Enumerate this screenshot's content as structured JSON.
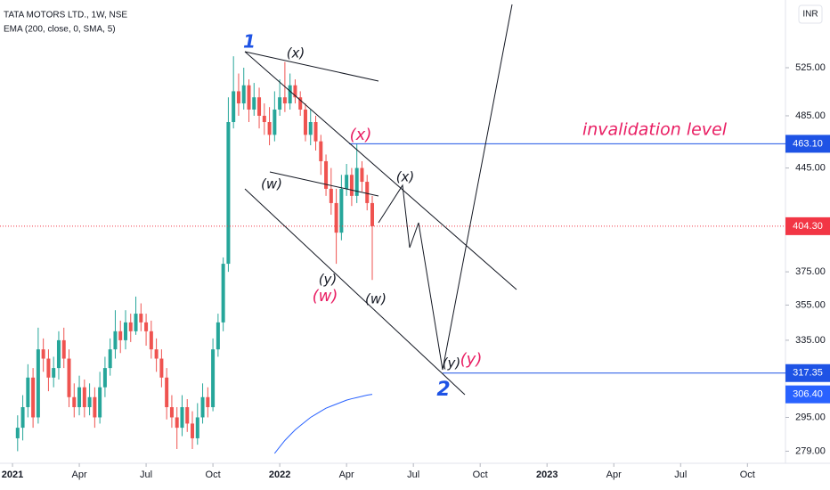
{
  "chart_data": {
    "type": "candlestick",
    "title": "TATA MOTORS LTD., 1W, NSE",
    "subtitle": "EMA (200, close, 0, SMA, 5)",
    "currency": "INR",
    "log_scale": true,
    "grid": false,
    "up_color": "#26a69a",
    "down_color": "#ef5350",
    "xlim": [
      -2.43,
      150.4
    ],
    "ylim": [
      273.5,
      587
    ],
    "xticks": [
      {
        "value": 0,
        "label": "2021"
      },
      {
        "value": 13,
        "label": "Apr"
      },
      {
        "value": 26,
        "label": "Jul"
      },
      {
        "value": 39,
        "label": "Oct"
      },
      {
        "value": 52,
        "label": "2022"
      },
      {
        "value": 65,
        "label": "Apr"
      },
      {
        "value": 78,
        "label": "Jul"
      },
      {
        "value": 91,
        "label": "Oct"
      },
      {
        "value": 104,
        "label": "2023"
      },
      {
        "value": 117,
        "label": "Apr"
      },
      {
        "value": 130,
        "label": "Jul"
      },
      {
        "value": 143,
        "label": "Oct"
      }
    ],
    "yticks": [
      {
        "value": 525,
        "label": "525.00"
      },
      {
        "value": 485,
        "label": "485.00"
      },
      {
        "value": 445,
        "label": "445.00"
      },
      {
        "value": 375,
        "label": "375.00"
      },
      {
        "value": 355,
        "label": "355.00"
      },
      {
        "value": 335,
        "label": "335.00"
      },
      {
        "value": 295,
        "label": "295.00"
      },
      {
        "value": 279,
        "label": "279.00"
      }
    ],
    "x": [
      1,
      2,
      3,
      4,
      5,
      6,
      7,
      8,
      9,
      10,
      11,
      12,
      13,
      14,
      15,
      16,
      17,
      18,
      19,
      20,
      21,
      22,
      23,
      24,
      25,
      26,
      27,
      28,
      29,
      30,
      31,
      32,
      33,
      34,
      35,
      36,
      37,
      38,
      39,
      40,
      41,
      42,
      43,
      44,
      45,
      46,
      47,
      48,
      49,
      50,
      51,
      52,
      53,
      54,
      55,
      56,
      57,
      58,
      59,
      60,
      61,
      62,
      63,
      64,
      65,
      66,
      67,
      68,
      69,
      70
    ],
    "open": [
      285,
      290,
      300,
      315,
      295,
      330,
      325,
      315,
      320,
      335,
      325,
      305,
      300,
      310,
      300,
      305,
      295,
      310,
      320,
      330,
      340,
      335,
      345,
      340,
      350,
      345,
      340,
      330,
      325,
      315,
      300,
      295,
      290,
      300,
      292,
      285,
      295,
      305,
      300,
      330,
      345,
      380,
      480,
      505,
      495,
      510,
      490,
      500,
      485,
      480,
      470,
      490,
      500,
      495,
      510,
      500,
      490,
      470,
      480,
      465,
      450,
      430,
      420,
      400,
      430,
      440,
      425,
      445,
      435,
      420
    ],
    "high": [
      296,
      306,
      322,
      320,
      342,
      336,
      330,
      326,
      340,
      342,
      330,
      312,
      316,
      314,
      312,
      310,
      318,
      326,
      336,
      352,
      346,
      352,
      350,
      360,
      356,
      350,
      346,
      336,
      330,
      320,
      306,
      300,
      306,
      304,
      298,
      302,
      312,
      310,
      336,
      350,
      384,
      500,
      535,
      520,
      525,
      515,
      512,
      508,
      495,
      492,
      505,
      515,
      530,
      520,
      515,
      505,
      495,
      490,
      485,
      470,
      455,
      445,
      430,
      440,
      448,
      445,
      463,
      450,
      440,
      425
    ],
    "low": [
      279,
      284,
      295,
      290,
      292,
      318,
      308,
      310,
      314,
      320,
      300,
      295,
      296,
      295,
      296,
      290,
      292,
      305,
      316,
      325,
      328,
      330,
      334,
      338,
      340,
      332,
      325,
      318,
      310,
      294,
      290,
      280,
      286,
      288,
      280,
      282,
      292,
      295,
      298,
      326,
      340,
      375,
      475,
      485,
      490,
      480,
      485,
      475,
      470,
      462,
      465,
      485,
      488,
      490,
      495,
      485,
      465,
      462,
      458,
      440,
      425,
      412,
      380,
      395,
      425,
      418,
      420,
      428,
      415,
      370
    ],
    "close": [
      290,
      300,
      315,
      295,
      330,
      325,
      315,
      320,
      335,
      325,
      305,
      300,
      310,
      300,
      305,
      295,
      310,
      320,
      330,
      340,
      335,
      345,
      340,
      350,
      345,
      340,
      330,
      325,
      315,
      300,
      295,
      290,
      300,
      292,
      285,
      295,
      305,
      300,
      330,
      345,
      380,
      480,
      505,
      495,
      510,
      490,
      500,
      485,
      480,
      470,
      490,
      500,
      495,
      510,
      500,
      490,
      470,
      480,
      465,
      450,
      430,
      420,
      400,
      430,
      440,
      425,
      445,
      435,
      420,
      404.3
    ],
    "ema": {
      "color": "#2962ff",
      "x": [
        51,
        52,
        53,
        54,
        55,
        56,
        57,
        58,
        59,
        60,
        61,
        62,
        63,
        64,
        65,
        66,
        67,
        68,
        69,
        70
      ],
      "values": [
        278,
        281,
        284,
        286.5,
        289,
        291,
        293,
        295,
        296.5,
        298,
        299.5,
        300.5,
        301.5,
        302.5,
        303.5,
        304.2,
        304.8,
        305.4,
        306,
        306.4
      ],
      "value_labels": {
        "19": "306.40"
      }
    },
    "price_labels": [
      {
        "value": 463.1,
        "label": "463.10",
        "color": "#1e53e5"
      },
      {
        "value": 404.3,
        "label": "404.30",
        "color": "#f23645"
      },
      {
        "value": 317.35,
        "label": "317.35",
        "color": "#1e53e5"
      }
    ],
    "annotations": [
      "1",
      "(x)",
      "(x)",
      "invalidation level",
      "(w)",
      "(x)",
      "(y)",
      "(w)",
      "(w)",
      "(y)",
      "(y)",
      "2"
    ]
  }
}
